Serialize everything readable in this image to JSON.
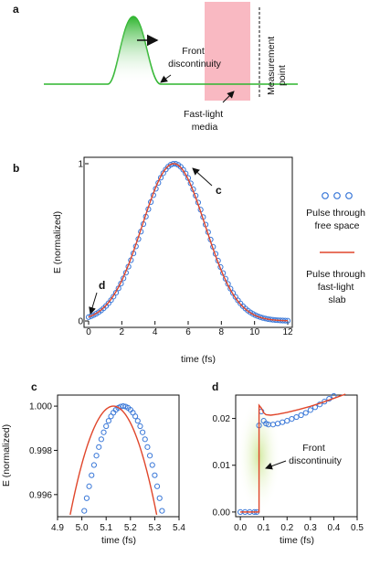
{
  "colors": {
    "pulse_green": "#2fb52f",
    "slab_pink": "#f9b9c2",
    "free_space_blue": "#3a78d8",
    "fast_light_red": "#e0462b",
    "highlight_green": "#d9efb0",
    "axis": "#111111"
  },
  "panel_a": {
    "label": "a",
    "front_discontinuity": "Front\ndiscontinuity",
    "media": "Fast-light\nmedia",
    "measurement": "Measurement\npoint"
  },
  "chart_data": [
    {
      "panel": "b",
      "type": "line",
      "xlabel": "time (fs)",
      "ylabel": "E (normalized)",
      "xlim": [
        0,
        12
      ],
      "ylim": [
        0,
        1
      ],
      "xticks": [
        "0",
        "2",
        "4",
        "6",
        "8",
        "10",
        "12"
      ],
      "yticks": [
        "0",
        "1"
      ],
      "annotations": [
        "c",
        "d"
      ],
      "legend_position": "right",
      "series": [
        {
          "name": "Pulse through\nfree space",
          "style": "circles",
          "color": "#3a78d8",
          "model": "gaussian",
          "center": 5.17,
          "sigma": 1.9
        },
        {
          "name": "Pulse through\nfast-light\nslab",
          "style": "line",
          "color": "#e0462b",
          "model": "gaussian",
          "center": 5.13,
          "sigma": 1.9,
          "front_time": 0.08
        }
      ]
    },
    {
      "panel": "c",
      "type": "line",
      "xlabel": "time (fs)",
      "ylabel": "E (normalized)",
      "xlim": [
        4.9,
        5.4
      ],
      "ylim": [
        0.995,
        1.0005
      ],
      "xticks": [
        "4.9",
        "5.0",
        "5.1",
        "5.2",
        "5.3",
        "5.4"
      ],
      "yticks": [
        "0.996",
        "0.998",
        "1.000"
      ],
      "series": [
        {
          "style": "circles",
          "color": "#3a78d8",
          "center": 5.17,
          "curvature": 0.185
        },
        {
          "style": "line",
          "color": "#e0462b",
          "center": 5.13,
          "curvature": 0.155
        }
      ]
    },
    {
      "panel": "d",
      "type": "line",
      "xlabel": "time (fs)",
      "xlim": [
        -0.02,
        0.5
      ],
      "ylim": [
        -0.001,
        0.025
      ],
      "xticks": [
        "0.0",
        "0.1",
        "0.2",
        "0.3",
        "0.4",
        "0.5"
      ],
      "yticks": [
        "0.00",
        "0.01",
        "0.02"
      ],
      "annotation": "Front\ndiscontinuity",
      "front_time": 0.08,
      "series": [
        {
          "style": "circles",
          "color": "#3a78d8",
          "points": [
            [
              0.0,
              0
            ],
            [
              0.02,
              0
            ],
            [
              0.04,
              0
            ],
            [
              0.06,
              0
            ],
            [
              0.07,
              0
            ],
            [
              0.08,
              0.0185
            ],
            [
              0.09,
              0.0215
            ],
            [
              0.1,
              0.0195
            ],
            [
              0.11,
              0.0189
            ],
            [
              0.12,
              0.0187
            ],
            [
              0.14,
              0.0187
            ],
            [
              0.16,
              0.0189
            ],
            [
              0.18,
              0.0192
            ],
            [
              0.2,
              0.0195
            ],
            [
              0.22,
              0.0199
            ],
            [
              0.24,
              0.0203
            ],
            [
              0.26,
              0.0207
            ],
            [
              0.28,
              0.0212
            ],
            [
              0.3,
              0.0218
            ],
            [
              0.32,
              0.0224
            ],
            [
              0.34,
              0.023
            ],
            [
              0.36,
              0.0236
            ],
            [
              0.38,
              0.0242
            ],
            [
              0.4,
              0.0248
            ]
          ]
        },
        {
          "style": "line",
          "color": "#e0462b",
          "points": [
            [
              0.0,
              0
            ],
            [
              0.08,
              0
            ],
            [
              0.08,
              0.0228
            ],
            [
              0.09,
              0.0222
            ],
            [
              0.1,
              0.0212
            ],
            [
              0.11,
              0.0208
            ],
            [
              0.13,
              0.0207
            ],
            [
              0.16,
              0.0209
            ],
            [
              0.2,
              0.0213
            ],
            [
              0.25,
              0.0219
            ],
            [
              0.3,
              0.0226
            ],
            [
              0.35,
              0.0234
            ],
            [
              0.4,
              0.0243
            ],
            [
              0.45,
              0.0252
            ]
          ]
        }
      ]
    }
  ]
}
